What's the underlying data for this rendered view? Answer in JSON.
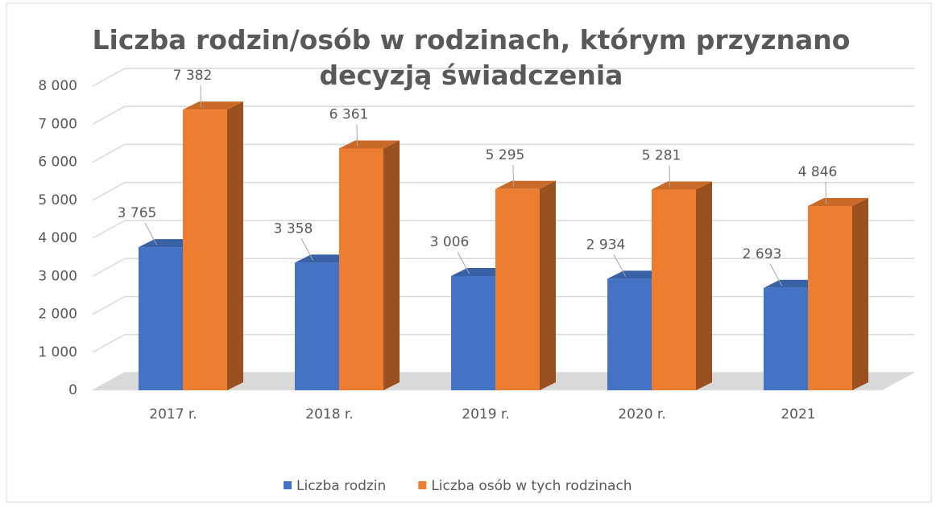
{
  "chart_data": {
    "type": "bar3d",
    "title": "Liczba rodzin/osób w rodzinach, którym przyznano decyzją świadczenia",
    "categories": [
      "2017 r.",
      "2018 r.",
      "2019 r.",
      "2020 r.",
      "2021"
    ],
    "series": [
      {
        "name": "Liczba rodzin",
        "color": "#4472c4",
        "values": [
          3765,
          3358,
          3006,
          2934,
          2693
        ],
        "value_labels": [
          "3 765",
          "3 358",
          "3 006",
          "2 934",
          "2 693"
        ]
      },
      {
        "name": "Liczba osób w tych rodzinach",
        "color": "#ed7d31",
        "values": [
          7382,
          6361,
          5295,
          5281,
          4846
        ],
        "value_labels": [
          "7 382",
          "6 361",
          "5 295",
          "5 281",
          "4 846"
        ]
      }
    ],
    "ylim": [
      0,
      8000
    ],
    "yticks": [
      0,
      {
        "value": 1000,
        "label": "1 000"
      },
      {
        "value": 2000,
        "label": "2 000"
      },
      {
        "value": 3000,
        "label": "3 000"
      },
      {
        "value": 4000,
        "label": "4 000"
      },
      {
        "value": 5000,
        "label": "5 000"
      },
      {
        "value": 6000,
        "label": "6 000"
      },
      {
        "value": 7000,
        "label": "7 000"
      },
      {
        "value": 8000,
        "label": "8 000"
      }
    ],
    "grid": true,
    "legend": "bottom"
  }
}
